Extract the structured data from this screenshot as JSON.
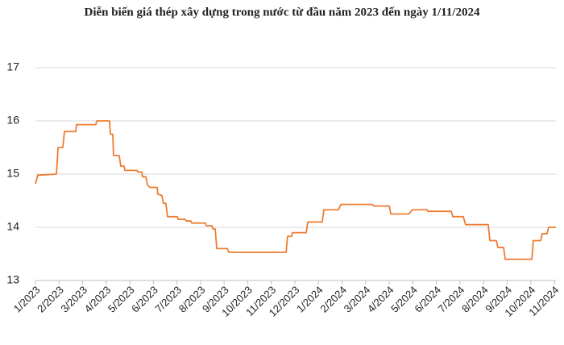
{
  "chart_data": {
    "type": "line",
    "title": "Diễn biến giá thép xây dựng trong nước từ đầu năm 2023 đến ngày 1/11/2024",
    "x": [
      0,
      0.1,
      0.89,
      0.96,
      1.16,
      1.23,
      1.71,
      1.74,
      2.56,
      2.6,
      3.14,
      3.18,
      3.28,
      3.31,
      3.55,
      3.62,
      3.76,
      3.79,
      4.3,
      4.34,
      4.51,
      4.54,
      4.68,
      4.75,
      4.85,
      5.16,
      5.19,
      5.36,
      5.43,
      5.53,
      5.6,
      6.01,
      6.05,
      6.35,
      6.39,
      6.59,
      6.63,
      7.21,
      7.24,
      7.48,
      7.52,
      7.62,
      7.69,
      8.13,
      8.2,
      10.63,
      10.69,
      10.86,
      10.9,
      11.48,
      11.55,
      12.16,
      12.23,
      12.85,
      12.95,
      14.28,
      14.35,
      15.0,
      15.07,
      15.82,
      15.99,
      16.6,
      16.64,
      17.63,
      17.7,
      18.14,
      18.24,
      19.2,
      19.27,
      19.54,
      19.61,
      19.85,
      19.92,
      21.05,
      21.11,
      21.42,
      21.49,
      21.69,
      21.76,
      22.07
    ],
    "values": [
      14.82,
      14.98,
      15.0,
      15.5,
      15.5,
      15.8,
      15.8,
      15.93,
      15.93,
      16.0,
      16.0,
      15.75,
      15.75,
      15.35,
      15.35,
      15.15,
      15.15,
      15.07,
      15.07,
      15.04,
      15.04,
      14.95,
      14.95,
      14.8,
      14.75,
      14.75,
      14.62,
      14.6,
      14.45,
      14.45,
      14.2,
      14.2,
      14.15,
      14.15,
      14.12,
      14.12,
      14.08,
      14.08,
      14.03,
      14.03,
      13.97,
      13.97,
      13.6,
      13.6,
      13.53,
      13.53,
      13.83,
      13.83,
      13.9,
      13.9,
      14.1,
      14.1,
      14.33,
      14.33,
      14.43,
      14.43,
      14.4,
      14.4,
      14.25,
      14.25,
      14.33,
      14.33,
      14.3,
      14.3,
      14.2,
      14.2,
      14.05,
      14.05,
      13.75,
      13.75,
      13.62,
      13.62,
      13.4,
      13.4,
      13.75,
      13.75,
      13.88,
      13.88,
      14.0,
      14.0
    ],
    "color": "#ed7d31",
    "xlim": [
      0,
      22.07
    ],
    "xticks": [
      {
        "value": 0,
        "label": "1/2023"
      },
      {
        "value": 1,
        "label": "2/2023"
      },
      {
        "value": 2,
        "label": "3/2023"
      },
      {
        "value": 3,
        "label": "4/2023"
      },
      {
        "value": 4,
        "label": "5/2023"
      },
      {
        "value": 5,
        "label": "6/2023"
      },
      {
        "value": 6,
        "label": "7/2023"
      },
      {
        "value": 7,
        "label": "8/2023"
      },
      {
        "value": 8,
        "label": "9/2023"
      },
      {
        "value": 9,
        "label": "10/2023"
      },
      {
        "value": 10,
        "label": "11/2023"
      },
      {
        "value": 11,
        "label": "12/2023"
      },
      {
        "value": 12,
        "label": "1/2024"
      },
      {
        "value": 13,
        "label": "2/2024"
      },
      {
        "value": 14,
        "label": "3/2024"
      },
      {
        "value": 15,
        "label": "4/2024"
      },
      {
        "value": 16,
        "label": "5/2024"
      },
      {
        "value": 17,
        "label": "6/2024"
      },
      {
        "value": 18,
        "label": "7/2024"
      },
      {
        "value": 19,
        "label": "8/2024"
      },
      {
        "value": 20,
        "label": "9/2024"
      },
      {
        "value": 21,
        "label": "10/2024"
      },
      {
        "value": 22,
        "label": "11/2024"
      }
    ],
    "ylim": [
      13,
      17
    ],
    "yticks": [
      13,
      14,
      15,
      16,
      17
    ],
    "grid": true
  }
}
